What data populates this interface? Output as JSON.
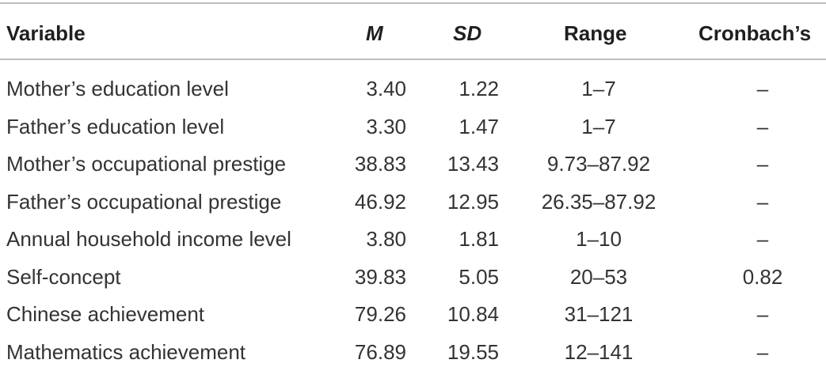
{
  "table": {
    "headers": {
      "variable": "Variable",
      "m": "M",
      "sd": "SD",
      "range": "Range",
      "alpha": "Cronbach’s"
    },
    "rows": [
      {
        "variable": "Mother’s education level",
        "m": "3.40",
        "sd": "1.22",
        "range": "1–7",
        "alpha": "–"
      },
      {
        "variable": "Father’s education level",
        "m": "3.30",
        "sd": "1.47",
        "range": "1–7",
        "alpha": "–"
      },
      {
        "variable": "Mother’s occupational prestige",
        "m": "38.83",
        "sd": "13.43",
        "range": "9.73–87.92",
        "alpha": "–"
      },
      {
        "variable": "Father’s occupational prestige",
        "m": "46.92",
        "sd": "12.95",
        "range": "26.35–87.92",
        "alpha": "–"
      },
      {
        "variable": "Annual household income level",
        "m": "3.80",
        "sd": "1.81",
        "range": "1–10",
        "alpha": "–"
      },
      {
        "variable": "Self-concept",
        "m": "39.83",
        "sd": "5.05",
        "range": "20–53",
        "alpha": "0.82"
      },
      {
        "variable": "Chinese achievement",
        "m": "79.26",
        "sd": "10.84",
        "range": "31–121",
        "alpha": "–"
      },
      {
        "variable": "Mathematics achievement",
        "m": "76.89",
        "sd": "19.55",
        "range": "12–141",
        "alpha": "–"
      }
    ]
  }
}
